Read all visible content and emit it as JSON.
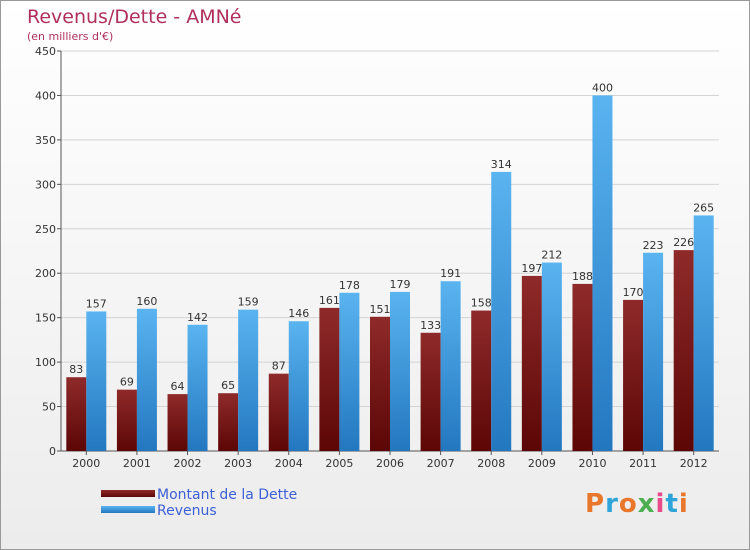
{
  "header": {
    "title": "Revenus/Dette - AMNé",
    "subtitle": "(en milliers d'€)"
  },
  "legend": {
    "items": [
      {
        "label": "Montant de la Dette",
        "color": "#7b1414"
      },
      {
        "label": "Revenus",
        "color": "#3d9ee0"
      }
    ]
  },
  "logo": {
    "text": "Proxiti",
    "letter_colors": [
      "#e8762b",
      "#2fa4d8",
      "#e8762b",
      "#4caf50",
      "#e84a8a",
      "#2fa4d8",
      "#e8762b"
    ]
  },
  "chart_data": {
    "type": "bar",
    "categories": [
      "2000",
      "2001",
      "2002",
      "2003",
      "2004",
      "2005",
      "2006",
      "2007",
      "2008",
      "2009",
      "2010",
      "2011",
      "2012"
    ],
    "series": [
      {
        "name": "Montant de la Dette",
        "values": [
          83,
          69,
          64,
          65,
          87,
          161,
          151,
          133,
          158,
          197,
          188,
          170,
          226
        ],
        "color": "#7b1414"
      },
      {
        "name": "Revenus",
        "values": [
          157,
          160,
          142,
          159,
          146,
          178,
          179,
          191,
          314,
          212,
          400,
          223,
          265
        ],
        "color": "#3d9ee0"
      }
    ],
    "ylim": [
      0,
      450
    ],
    "yticks": [
      0,
      50,
      100,
      150,
      200,
      250,
      300,
      350,
      400,
      450
    ],
    "grid": true,
    "legend_position": "bottom-left"
  }
}
